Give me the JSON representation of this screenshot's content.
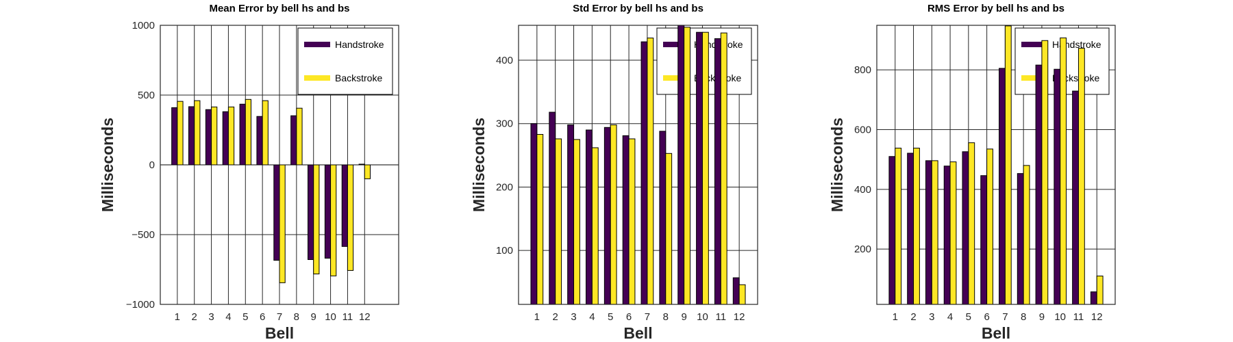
{
  "colors": {
    "handstroke": "#440154",
    "backstroke": "#FDE725",
    "grid": "#262626"
  },
  "chart_data": [
    {
      "type": "bar",
      "title": "Mean Error by bell hs and bs",
      "xlabel": "Bell",
      "ylabel": "Milliseconds",
      "categories": [
        "1",
        "2",
        "3",
        "4",
        "5",
        "6",
        "7",
        "8",
        "9",
        "10",
        "11",
        "12"
      ],
      "xlim": [
        0,
        14
      ],
      "ylim": [
        -1000,
        1000
      ],
      "yticks": [
        -1000,
        -500,
        0,
        500,
        1000
      ],
      "yticklabels": [
        "−1000",
        "−500",
        "0",
        "500",
        "1000"
      ],
      "grid": true,
      "legend_position": "top-right",
      "series": [
        {
          "name": "Handstroke",
          "values": [
            410,
            417,
            396,
            381,
            435,
            347,
            -684,
            352,
            -679,
            -669,
            -585,
            5
          ]
        },
        {
          "name": "Backstroke",
          "values": [
            455,
            460,
            415,
            415,
            469,
            460,
            -845,
            406,
            -782,
            -796,
            -757,
            -100
          ]
        }
      ]
    },
    {
      "type": "bar",
      "title": "Std Error by bell hs and bs",
      "xlabel": "Bell",
      "ylabel": "Milliseconds",
      "categories": [
        "1",
        "2",
        "3",
        "4",
        "5",
        "6",
        "7",
        "8",
        "9",
        "10",
        "11",
        "12"
      ],
      "xlim": [
        0,
        13
      ],
      "ylim": [
        15,
        455
      ],
      "yticks": [
        100,
        200,
        300,
        400
      ],
      "yticklabels": [
        "100",
        "200",
        "300",
        "400"
      ],
      "grid": true,
      "legend_position": "top-right",
      "series": [
        {
          "name": "Handstroke",
          "values": [
            300,
            318,
            298,
            290,
            294,
            281,
            429,
            288,
            456,
            444,
            434,
            57
          ]
        },
        {
          "name": "Backstroke",
          "values": [
            283,
            276,
            275,
            262,
            298,
            276,
            435,
            253,
            452,
            444,
            443,
            46
          ]
        }
      ]
    },
    {
      "type": "bar",
      "title": "RMS Error by bell hs and bs",
      "xlabel": "Bell",
      "ylabel": "Milliseconds",
      "categories": [
        "1",
        "2",
        "3",
        "4",
        "5",
        "6",
        "7",
        "8",
        "9",
        "10",
        "11",
        "12"
      ],
      "xlim": [
        0,
        13
      ],
      "ylim": [
        15,
        949
      ],
      "yticks": [
        200,
        400,
        600,
        800
      ],
      "yticklabels": [
        "200",
        "400",
        "600",
        "800"
      ],
      "grid": true,
      "legend_position": "top-right",
      "series": [
        {
          "name": "Handstroke",
          "values": [
            510,
            521,
            496,
            478,
            526,
            446,
            805,
            453,
            816,
            802,
            729,
            57
          ]
        },
        {
          "name": "Backstroke",
          "values": [
            538,
            538,
            496,
            492,
            556,
            535,
            947,
            480,
            898,
            907,
            872,
            110
          ]
        }
      ]
    }
  ]
}
